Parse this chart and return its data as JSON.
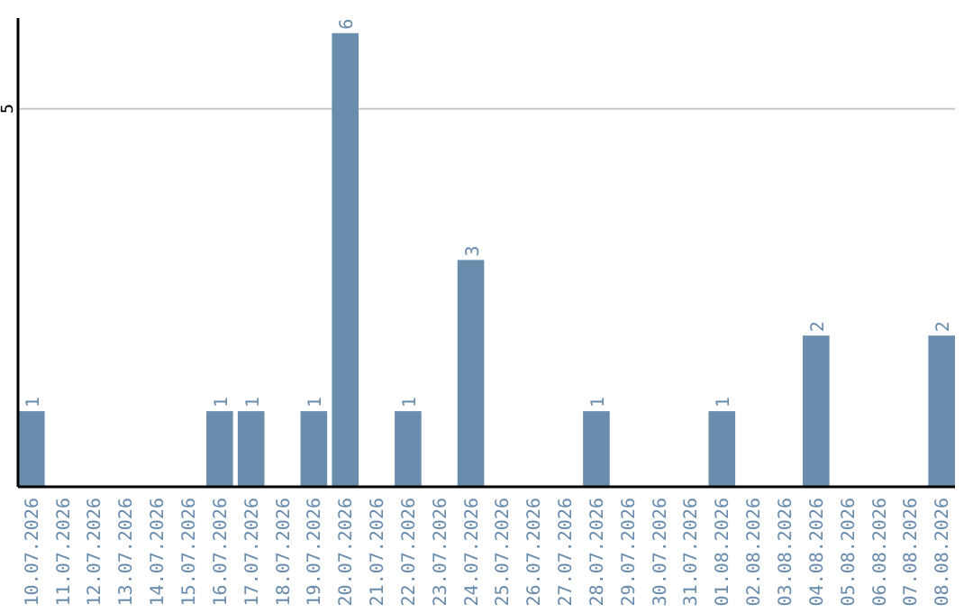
{
  "chart_data": {
    "type": "bar",
    "categories": [
      "10.07.2026",
      "11.07.2026",
      "12.07.2026",
      "13.07.2026",
      "14.07.2026",
      "15.07.2026",
      "16.07.2026",
      "17.07.2026",
      "18.07.2026",
      "19.07.2026",
      "20.07.2026",
      "21.07.2026",
      "22.07.2026",
      "23.07.2026",
      "24.07.2026",
      "25.07.2026",
      "26.07.2026",
      "27.07.2026",
      "28.07.2026",
      "29.07.2026",
      "30.07.2026",
      "31.07.2026",
      "01.08.2026",
      "02.08.2026",
      "03.08.2026",
      "04.08.2026",
      "05.08.2026",
      "06.08.2026",
      "07.08.2026",
      "08.08.2026"
    ],
    "values": [
      1,
      0,
      0,
      0,
      0,
      0,
      1,
      1,
      0,
      1,
      6,
      0,
      1,
      0,
      3,
      0,
      0,
      0,
      1,
      0,
      0,
      0,
      1,
      0,
      0,
      2,
      0,
      0,
      0,
      2
    ],
    "value_labels": [
      "1",
      null,
      null,
      null,
      null,
      null,
      "1",
      "1",
      null,
      "1",
      "6",
      null,
      "1",
      null,
      "3",
      null,
      null,
      null,
      "1",
      null,
      null,
      null,
      "1",
      null,
      null,
      "2",
      null,
      null,
      null,
      "2"
    ],
    "color": "#6a8cad",
    "ylim": [
      0,
      6.2
    ],
    "yticks": [
      5
    ],
    "grid": "y"
  }
}
